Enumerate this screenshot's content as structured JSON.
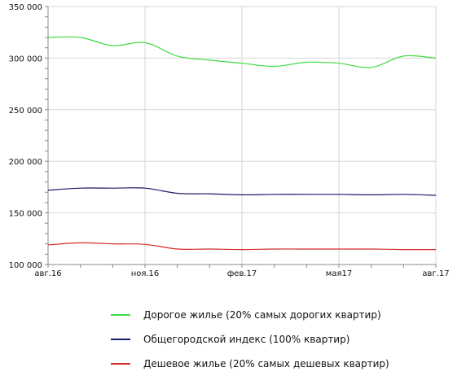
{
  "chart_data": {
    "type": "line",
    "x": [
      "2016-08",
      "2016-09",
      "2016-10",
      "2016-11",
      "2016-12",
      "2017-01",
      "2017-02",
      "2017-03",
      "2017-04",
      "2017-05",
      "2017-06",
      "2017-07",
      "2017-08"
    ],
    "x_tick_labels": [
      "авг.16",
      "ноя.16",
      "фев.17",
      "мая17",
      "авг.17"
    ],
    "y_tick_labels": [
      "100 000",
      "150 000",
      "200 000",
      "250 000",
      "300 000",
      "350 000"
    ],
    "ylim": [
      100000,
      350000
    ],
    "grid": true,
    "legend_position": "bottom",
    "series": [
      {
        "name": "Дорогое жилье (20% самых дорогих квартир)",
        "color": "#3fdc3f",
        "values": [
          320000,
          320000,
          312000,
          315000,
          302000,
          298000,
          295000,
          292000,
          296000,
          295000,
          291000,
          302000,
          300000
        ]
      },
      {
        "name": "Общегородской индекс (100% квартир)",
        "color": "#1a1a6e",
        "values": [
          172000,
          174000,
          174000,
          174000,
          169000,
          168500,
          167500,
          168000,
          168000,
          168000,
          167500,
          168000,
          167000
        ]
      },
      {
        "name": "Дешевое жилье (20% самых дешевых квартир)",
        "color": "#d42a2a",
        "values": [
          119000,
          121000,
          120000,
          119500,
          115000,
          115000,
          114500,
          115000,
          115000,
          115000,
          115000,
          114500,
          114500
        ]
      }
    ]
  }
}
